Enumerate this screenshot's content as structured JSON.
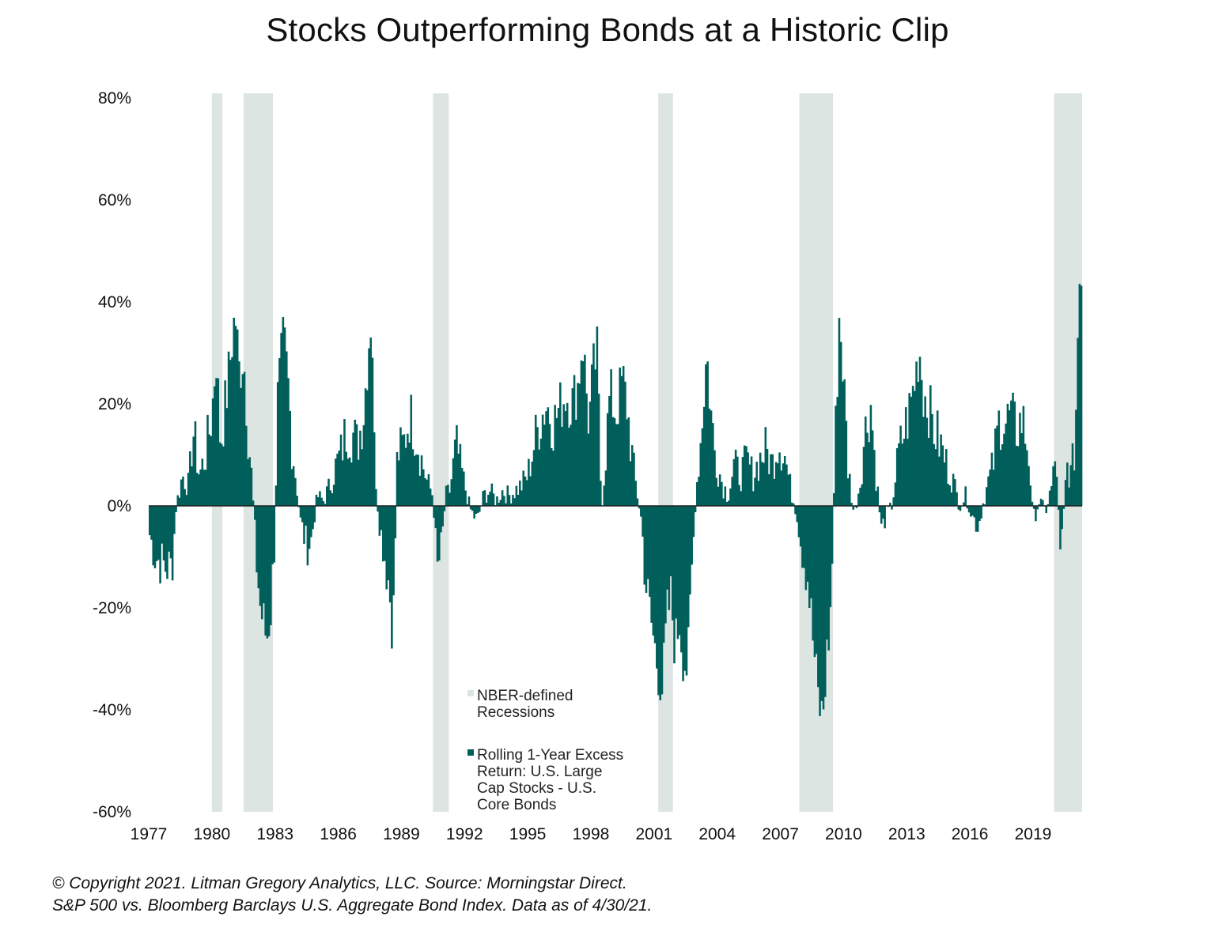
{
  "chart_data": {
    "type": "bar",
    "title": "Stocks Outperforming Bonds at a Historic Clip",
    "xlabel": "",
    "ylabel": "",
    "ylim": [
      -60,
      80
    ],
    "xlim": [
      1977,
      2021.33
    ],
    "y_ticks": [
      "80%",
      "60%",
      "40%",
      "20%",
      "0%",
      "-20%",
      "-40%",
      "-60%"
    ],
    "y_tick_values": [
      80,
      60,
      40,
      20,
      0,
      -20,
      -40,
      -60
    ],
    "x_ticks": [
      "1977",
      "1980",
      "1983",
      "1986",
      "1989",
      "1992",
      "1995",
      "1998",
      "2001",
      "2004",
      "2007",
      "2010",
      "2013",
      "2016",
      "2019"
    ],
    "x_tick_values": [
      1977,
      1980,
      1983,
      1986,
      1989,
      1992,
      1995,
      1998,
      2001,
      2004,
      2007,
      2010,
      2013,
      2016,
      2019
    ],
    "recessions": [
      {
        "start": 1980.0,
        "end": 1980.5
      },
      {
        "start": 1981.5,
        "end": 1982.9
      },
      {
        "start": 1990.5,
        "end": 1991.25
      },
      {
        "start": 2001.2,
        "end": 2001.9
      },
      {
        "start": 2007.9,
        "end": 2009.5
      },
      {
        "start": 2020.0,
        "end": 2021.33
      }
    ],
    "series": [
      {
        "name": "Rolling 1-Year Excess Return: U.S. Large Cap Stocks - U.S. Core Bonds",
        "color": "#005f5b",
        "anchors": [
          [
            1977.0,
            -5
          ],
          [
            1977.3,
            -10
          ],
          [
            1977.8,
            -12
          ],
          [
            1978.1,
            -12
          ],
          [
            1978.3,
            0
          ],
          [
            1978.6,
            6
          ],
          [
            1978.9,
            4
          ],
          [
            1979.1,
            15
          ],
          [
            1979.4,
            6
          ],
          [
            1979.7,
            10
          ],
          [
            1980.0,
            18
          ],
          [
            1980.2,
            30
          ],
          [
            1980.4,
            12
          ],
          [
            1980.7,
            22
          ],
          [
            1980.9,
            30
          ],
          [
            1981.1,
            38
          ],
          [
            1981.3,
            26
          ],
          [
            1981.5,
            30
          ],
          [
            1981.7,
            15
          ],
          [
            1981.9,
            5
          ],
          [
            1982.1,
            -10
          ],
          [
            1982.3,
            -20
          ],
          [
            1982.6,
            -26
          ],
          [
            1982.8,
            -20
          ],
          [
            1983.0,
            -5
          ],
          [
            1983.1,
            20
          ],
          [
            1983.4,
            33
          ],
          [
            1983.6,
            25
          ],
          [
            1983.8,
            12
          ],
          [
            1984.0,
            5
          ],
          [
            1984.2,
            -3
          ],
          [
            1984.5,
            -8
          ],
          [
            1984.7,
            -7
          ],
          [
            1985.0,
            2
          ],
          [
            1985.3,
            1
          ],
          [
            1985.6,
            4
          ],
          [
            1985.9,
            8
          ],
          [
            1986.1,
            10
          ],
          [
            1986.4,
            15
          ],
          [
            1986.7,
            14
          ],
          [
            1986.9,
            12
          ],
          [
            1987.2,
            18
          ],
          [
            1987.5,
            35
          ],
          [
            1987.6,
            38
          ],
          [
            1987.7,
            12
          ],
          [
            1987.9,
            -2
          ],
          [
            1988.1,
            -7
          ],
          [
            1988.4,
            -15
          ],
          [
            1988.6,
            -25
          ],
          [
            1988.8,
            10
          ],
          [
            1989.1,
            12
          ],
          [
            1989.4,
            18
          ],
          [
            1989.7,
            14
          ],
          [
            1989.9,
            10
          ],
          [
            1990.2,
            5
          ],
          [
            1990.5,
            2
          ],
          [
            1990.7,
            -13
          ],
          [
            1990.9,
            -8
          ],
          [
            1991.1,
            2
          ],
          [
            1991.3,
            3
          ],
          [
            1991.6,
            12
          ],
          [
            1991.8,
            8
          ],
          [
            1992.0,
            4
          ],
          [
            1992.3,
            -1
          ],
          [
            1992.6,
            -3
          ],
          [
            1992.9,
            2
          ],
          [
            1993.2,
            3
          ],
          [
            1993.5,
            1
          ],
          [
            1993.8,
            3
          ],
          [
            1994.1,
            2
          ],
          [
            1994.4,
            3
          ],
          [
            1994.7,
            4
          ],
          [
            1995.0,
            6
          ],
          [
            1995.3,
            12
          ],
          [
            1995.6,
            17
          ],
          [
            1995.9,
            20
          ],
          [
            1996.2,
            16
          ],
          [
            1996.5,
            19
          ],
          [
            1996.8,
            22
          ],
          [
            1997.1,
            20
          ],
          [
            1997.4,
            24
          ],
          [
            1997.6,
            33
          ],
          [
            1997.9,
            16
          ],
          [
            1998.1,
            26
          ],
          [
            1998.3,
            30
          ],
          [
            1998.5,
            -1
          ],
          [
            1998.7,
            10
          ],
          [
            1998.9,
            22
          ],
          [
            1999.2,
            18
          ],
          [
            1999.5,
            25
          ],
          [
            1999.7,
            20
          ],
          [
            1999.9,
            12
          ],
          [
            2000.1,
            5
          ],
          [
            2000.4,
            -3
          ],
          [
            2000.6,
            -15
          ],
          [
            2000.9,
            -24
          ],
          [
            2001.1,
            -30
          ],
          [
            2001.4,
            -36
          ],
          [
            2001.6,
            -22
          ],
          [
            2001.8,
            -18
          ],
          [
            2002.0,
            -28
          ],
          [
            2002.2,
            -22
          ],
          [
            2002.4,
            -30
          ],
          [
            2002.6,
            -32
          ],
          [
            2002.8,
            -12
          ],
          [
            2003.0,
            3
          ],
          [
            2003.2,
            12
          ],
          [
            2003.5,
            30
          ],
          [
            2003.7,
            18
          ],
          [
            2003.9,
            10
          ],
          [
            2004.2,
            5
          ],
          [
            2004.5,
            2
          ],
          [
            2004.8,
            8
          ],
          [
            2005.1,
            6
          ],
          [
            2005.4,
            9
          ],
          [
            2005.7,
            6
          ],
          [
            2006.0,
            9
          ],
          [
            2006.3,
            11
          ],
          [
            2006.6,
            8
          ],
          [
            2006.9,
            13
          ],
          [
            2007.2,
            10
          ],
          [
            2007.5,
            3
          ],
          [
            2007.8,
            -2
          ],
          [
            2008.0,
            -8
          ],
          [
            2008.3,
            -14
          ],
          [
            2008.5,
            -24
          ],
          [
            2008.8,
            -38
          ],
          [
            2009.0,
            -42
          ],
          [
            2009.2,
            -30
          ],
          [
            2009.4,
            -20
          ],
          [
            2009.6,
            12
          ],
          [
            2009.8,
            38
          ],
          [
            2010.0,
            25
          ],
          [
            2010.2,
            8
          ],
          [
            2010.5,
            -2
          ],
          [
            2010.8,
            5
          ],
          [
            2011.0,
            14
          ],
          [
            2011.3,
            20
          ],
          [
            2011.5,
            8
          ],
          [
            2011.8,
            -5
          ],
          [
            2012.0,
            -2
          ],
          [
            2012.3,
            0
          ],
          [
            2012.6,
            10
          ],
          [
            2012.9,
            15
          ],
          [
            2013.1,
            18
          ],
          [
            2013.4,
            25
          ],
          [
            2013.6,
            31
          ],
          [
            2013.8,
            22
          ],
          [
            2014.0,
            20
          ],
          [
            2014.3,
            15
          ],
          [
            2014.6,
            12
          ],
          [
            2014.9,
            8
          ],
          [
            2015.2,
            5
          ],
          [
            2015.5,
            0
          ],
          [
            2015.8,
            2
          ],
          [
            2016.1,
            -2
          ],
          [
            2016.4,
            -4
          ],
          [
            2016.7,
            2
          ],
          [
            2016.9,
            5
          ],
          [
            2017.1,
            8
          ],
          [
            2017.4,
            17
          ],
          [
            2017.7,
            16
          ],
          [
            2017.9,
            18
          ],
          [
            2018.2,
            15
          ],
          [
            2018.5,
            17
          ],
          [
            2018.8,
            10
          ],
          [
            2019.0,
            -3
          ],
          [
            2019.3,
            1
          ],
          [
            2019.6,
            -1
          ],
          [
            2019.9,
            4
          ],
          [
            2020.1,
            10
          ],
          [
            2020.3,
            -12
          ],
          [
            2020.6,
            8
          ],
          [
            2020.8,
            6
          ],
          [
            2021.0,
            12
          ],
          [
            2021.15,
            38
          ],
          [
            2021.25,
            50
          ],
          [
            2021.33,
            45
          ]
        ]
      }
    ],
    "legend": [
      {
        "label_lines": [
          "NBER-defined",
          "Recessions"
        ],
        "color": "#dde5e3"
      },
      {
        "label_lines": [
          "Rolling 1-Year Excess",
          "Return: U.S. Large",
          "Cap Stocks - U.S.",
          "Core Bonds"
        ],
        "color": "#005f5b"
      }
    ],
    "legend_position": "lower-center"
  },
  "footnote": {
    "line1": "© Copyright 2021. Litman Gregory Analytics, LLC. Source: Morningstar Direct.",
    "line2": "S&P 500 vs. Bloomberg Barclays U.S. Aggregate Bond Index. Data as of 4/30/21."
  },
  "colors": {
    "bar": "#005f5b",
    "recession": "#dde5e3",
    "zero_line": "#222222"
  }
}
